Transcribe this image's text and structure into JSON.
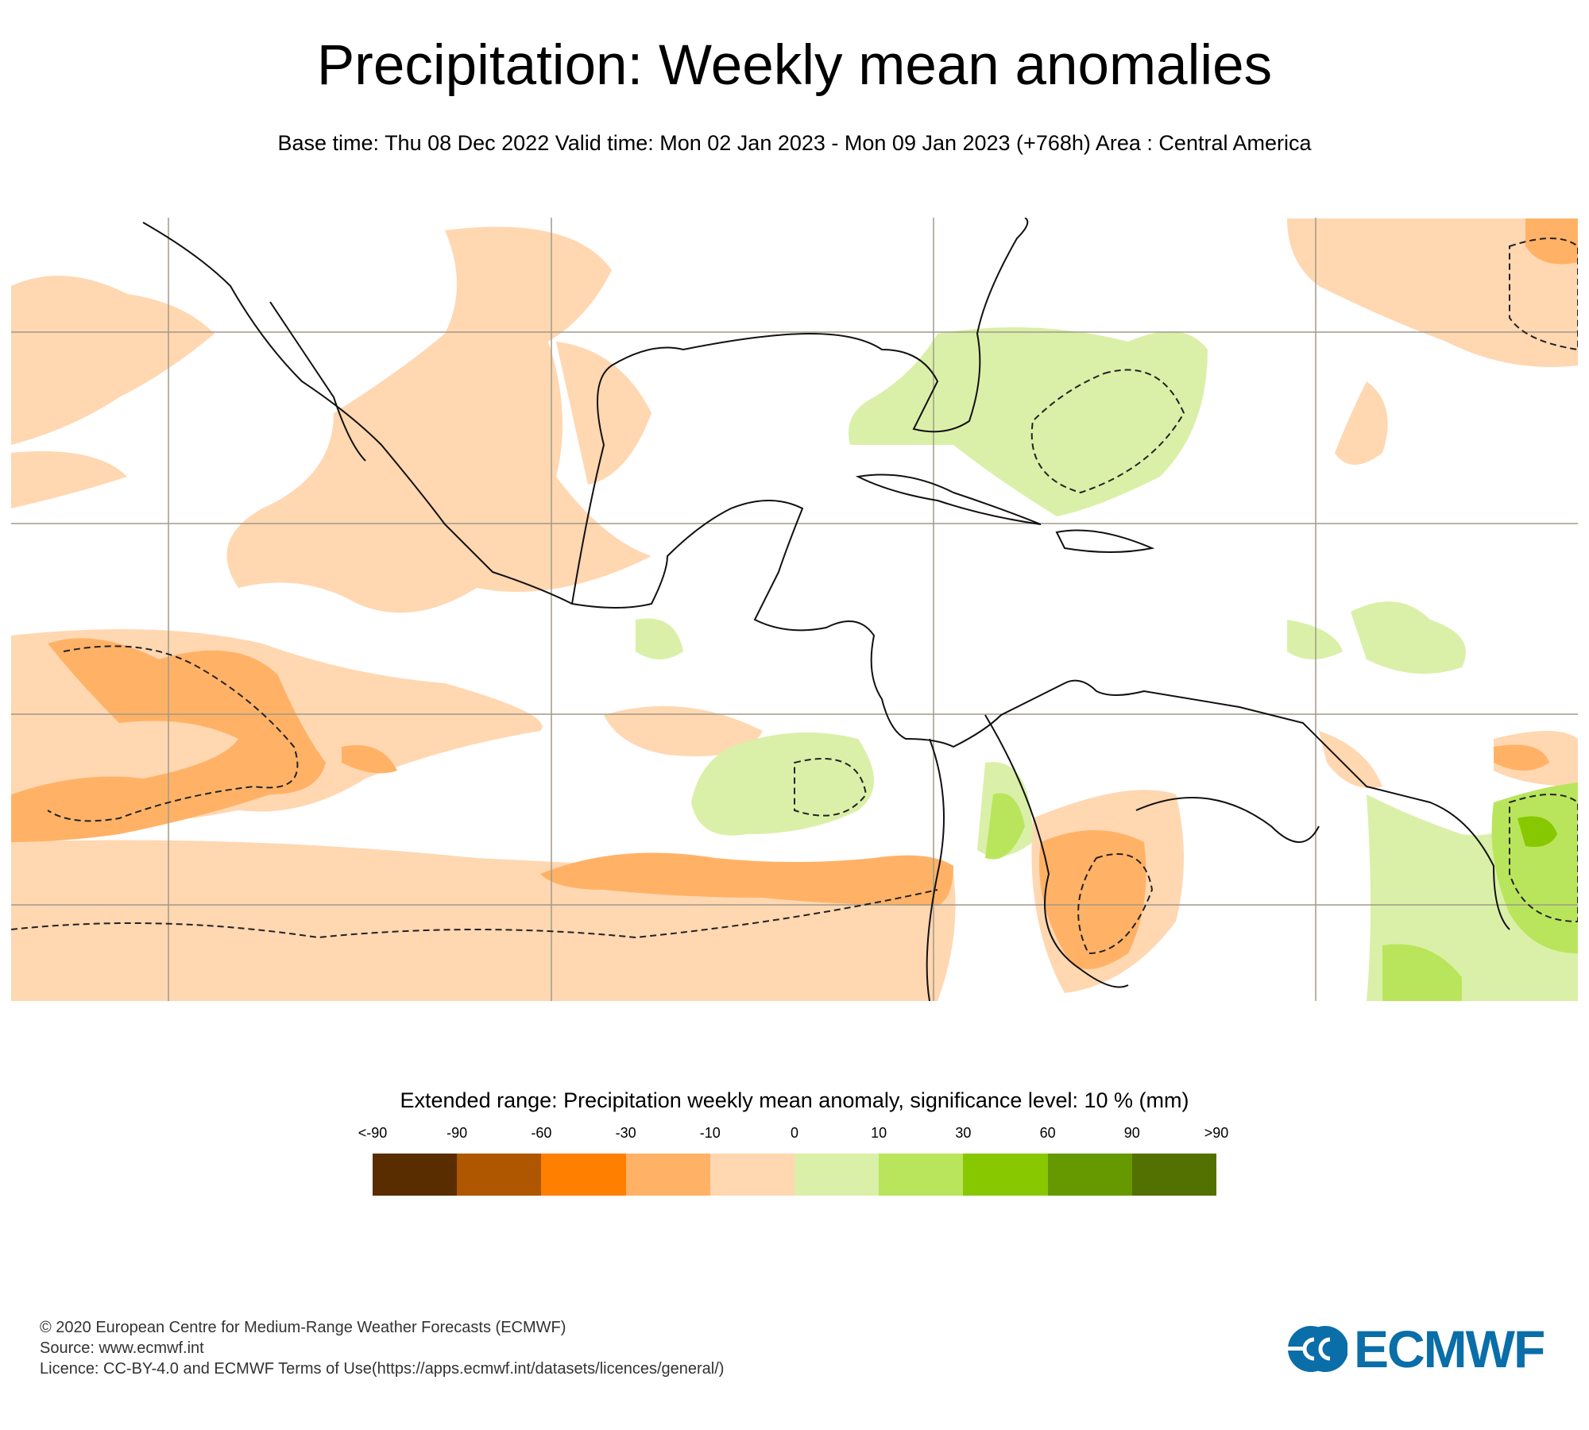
{
  "header": {
    "title": "Precipitation: Weekly mean anomalies",
    "subtitle": "Base time: Thu 08 Dec 2022 Valid time: Mon 02 Jan 2023 - Mon 09 Jan 2023 (+768h) Area : Central America"
  },
  "legend": {
    "title": "Extended range: Precipitation weekly mean anomaly, significance level: 10 % (mm)",
    "labels": [
      "<-90",
      "-90",
      "-60",
      "-30",
      "-10",
      "0",
      "10",
      "30",
      "60",
      "90",
      ">90"
    ],
    "colors": [
      "#5a2d00",
      "#ae5700",
      "#ff8000",
      "#ffb266",
      "#ffd7b1",
      "#daf0a8",
      "#b9e55c",
      "#88c800",
      "#669900",
      "#527100"
    ]
  },
  "footer": {
    "copyright": "© 2020 European Centre for Medium-Range Weather Forecasts (ECMWF)",
    "source": "Source: www.ecmwf.int",
    "licence": "Licence: CC-BY-4.0 and ECMWF Terms of Use(https://apps.ecmwf.int/datasets/licences/general/)"
  },
  "logo": {
    "text": "ECMWF",
    "color": "#0a6ea8"
  }
}
